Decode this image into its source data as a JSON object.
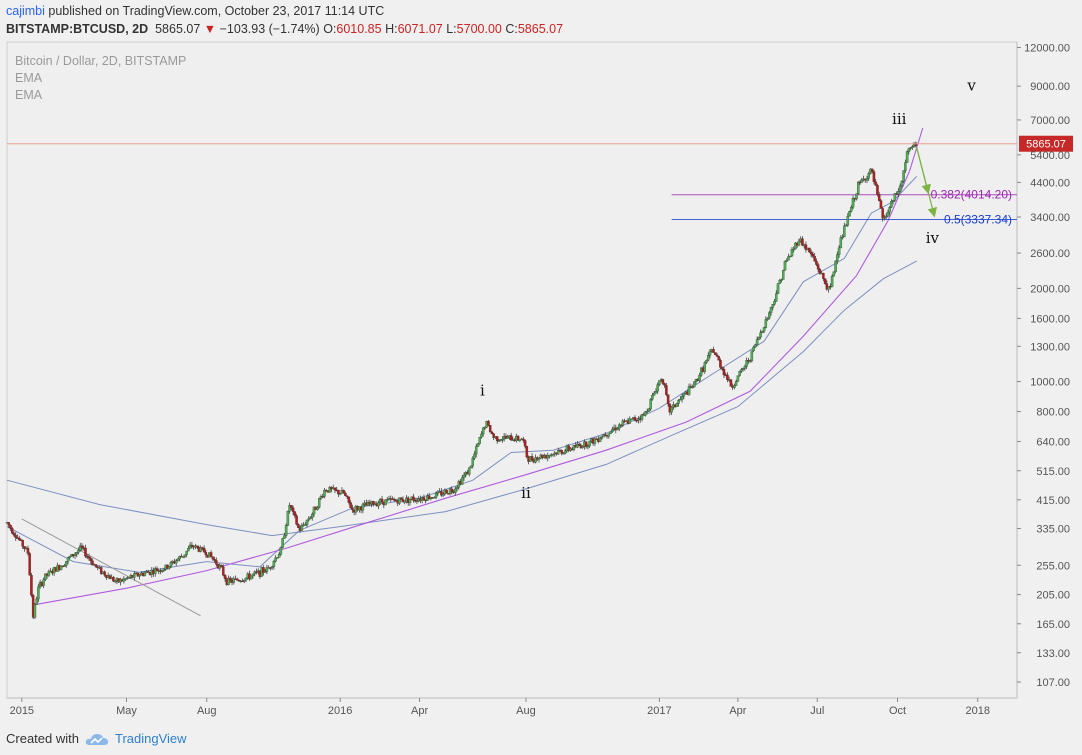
{
  "header": {
    "author": "cajimbi",
    "published_text": " published on TradingView.com, October 23, 2017 11:14 UTC",
    "symbol": "BITSTAMP:BTCUSD, 2D",
    "last": "5865.07",
    "change": "−103.93 (−1.74%)",
    "o_label": "O:",
    "o_value": "6010.85",
    "h_label": "H:",
    "h_value": "6071.07",
    "l_label": "L:",
    "l_value": "5700.00",
    "c_label": "C:",
    "c_value": "5865.07"
  },
  "legend": {
    "title": "Bitcoin / Dollar, 2D, BITSTAMP",
    "ema1": "EMA",
    "ema2": "EMA"
  },
  "footer": {
    "created_with": "Created with",
    "brand": "TradingView"
  },
  "colors": {
    "up": "#4caf50",
    "down": "#b71c1c",
    "price_line": "#e8a090",
    "price_badge": "#c62828",
    "fib382": "#9c27b0",
    "fib5": "#1a3fd0",
    "curve": "#b05ae0",
    "ema_fast": "#6a7fb8",
    "ema_slow": "#6a7fb8",
    "arrow": "#7cb342"
  },
  "chart_data": {
    "type": "candlestick",
    "y_scale": "log",
    "ylim": [
      95,
      12500
    ],
    "xlim": [
      "2014-12-15",
      "2018-02-15"
    ],
    "x_ticks": [
      {
        "label": "2015",
        "date": "2015-01-01"
      },
      {
        "label": "May",
        "date": "2015-05-01"
      },
      {
        "label": "Aug",
        "date": "2015-08-01"
      },
      {
        "label": "2016",
        "date": "2016-01-01"
      },
      {
        "label": "Apr",
        "date": "2016-04-01"
      },
      {
        "label": "Aug",
        "date": "2016-08-01"
      },
      {
        "label": "2017",
        "date": "2017-01-01"
      },
      {
        "label": "Apr",
        "date": "2017-04-01"
      },
      {
        "label": "Jul",
        "date": "2017-07-01"
      },
      {
        "label": "Oct",
        "date": "2017-10-01"
      },
      {
        "label": "2018",
        "date": "2018-01-01"
      }
    ],
    "y_ticks": [
      "107.00",
      "133.00",
      "165.00",
      "205.00",
      "255.00",
      "335.00",
      "415.00",
      "515.00",
      "640.00",
      "800.00",
      "1000.00",
      "1300.00",
      "1600.00",
      "2000.00",
      "2600.00",
      "3400.00",
      "4400.00",
      "5400.00",
      "7000.00",
      "9000.00",
      "12000.00"
    ],
    "last_price": {
      "value": 5865.07,
      "label": "5865.07"
    },
    "close_path": [
      [
        "2014-12-15",
        350
      ],
      [
        "2015-01-08",
        280
      ],
      [
        "2015-01-14",
        175
      ],
      [
        "2015-01-20",
        215
      ],
      [
        "2015-01-28",
        235
      ],
      [
        "2015-02-15",
        255
      ],
      [
        "2015-03-10",
        290
      ],
      [
        "2015-03-28",
        250
      ],
      [
        "2015-04-20",
        225
      ],
      [
        "2015-05-15",
        238
      ],
      [
        "2015-06-15",
        250
      ],
      [
        "2015-07-05",
        275
      ],
      [
        "2015-07-15",
        295
      ],
      [
        "2015-08-01",
        280
      ],
      [
        "2015-08-15",
        255
      ],
      [
        "2015-08-25",
        225
      ],
      [
        "2015-09-15",
        232
      ],
      [
        "2015-10-10",
        248
      ],
      [
        "2015-10-25",
        285
      ],
      [
        "2015-11-04",
        400
      ],
      [
        "2015-11-15",
        330
      ],
      [
        "2015-11-30",
        375
      ],
      [
        "2015-12-15",
        450
      ],
      [
        "2016-01-05",
        435
      ],
      [
        "2016-01-15",
        385
      ],
      [
        "2016-02-15",
        410
      ],
      [
        "2016-03-15",
        415
      ],
      [
        "2016-04-15",
        425
      ],
      [
        "2016-05-10",
        450
      ],
      [
        "2016-05-28",
        520
      ],
      [
        "2016-06-16",
        740
      ],
      [
        "2016-06-25",
        660
      ],
      [
        "2016-07-10",
        655
      ],
      [
        "2016-07-28",
        655
      ],
      [
        "2016-08-03",
        560
      ],
      [
        "2016-08-20",
        575
      ],
      [
        "2016-09-15",
        600
      ],
      [
        "2016-10-15",
        640
      ],
      [
        "2016-11-15",
        720
      ],
      [
        "2016-12-15",
        780
      ],
      [
        "2017-01-04",
        1050
      ],
      [
        "2017-01-12",
        800
      ],
      [
        "2017-02-10",
        980
      ],
      [
        "2017-03-03",
        1270
      ],
      [
        "2017-03-25",
        960
      ],
      [
        "2017-04-15",
        1200
      ],
      [
        "2017-05-10",
        1750
      ],
      [
        "2017-05-25",
        2400
      ],
      [
        "2017-06-10",
        2900
      ],
      [
        "2017-06-25",
        2550
      ],
      [
        "2017-07-15",
        1950
      ],
      [
        "2017-07-25",
        2700
      ],
      [
        "2017-08-17",
        4300
      ],
      [
        "2017-09-01",
        4800
      ],
      [
        "2017-09-15",
        3300
      ],
      [
        "2017-09-25",
        3800
      ],
      [
        "2017-10-05",
        4300
      ],
      [
        "2017-10-12",
        5500
      ],
      [
        "2017-10-23",
        5865.07
      ]
    ],
    "ema_fast": [
      [
        "2014-12-15",
        340
      ],
      [
        "2015-03-01",
        262
      ],
      [
        "2015-05-15",
        242
      ],
      [
        "2015-08-01",
        262
      ],
      [
        "2015-10-01",
        252
      ],
      [
        "2015-11-15",
        330
      ],
      [
        "2016-01-15",
        390
      ],
      [
        "2016-04-01",
        420
      ],
      [
        "2016-06-01",
        480
      ],
      [
        "2016-07-15",
        590
      ],
      [
        "2016-09-01",
        600
      ],
      [
        "2016-11-01",
        680
      ],
      [
        "2017-01-01",
        820
      ],
      [
        "2017-03-01",
        1050
      ],
      [
        "2017-05-01",
        1350
      ],
      [
        "2017-06-15",
        2100
      ],
      [
        "2017-08-01",
        2500
      ],
      [
        "2017-09-01",
        3500
      ],
      [
        "2017-09-25",
        3800
      ],
      [
        "2017-10-23",
        4600
      ]
    ],
    "ema_slow": [
      [
        "2014-12-15",
        480
      ],
      [
        "2015-04-01",
        400
      ],
      [
        "2015-08-01",
        345
      ],
      [
        "2015-10-15",
        318
      ],
      [
        "2016-01-01",
        340
      ],
      [
        "2016-05-01",
        380
      ],
      [
        "2016-08-01",
        450
      ],
      [
        "2016-11-01",
        540
      ],
      [
        "2017-01-15",
        670
      ],
      [
        "2017-04-01",
        830
      ],
      [
        "2017-06-15",
        1250
      ],
      [
        "2017-08-01",
        1700
      ],
      [
        "2017-09-15",
        2150
      ],
      [
        "2017-10-23",
        2450
      ]
    ],
    "trend_curve": [
      [
        "2015-01-15",
        190
      ],
      [
        "2015-05-01",
        215
      ],
      [
        "2015-08-01",
        245
      ],
      [
        "2015-11-01",
        290
      ],
      [
        "2016-02-01",
        350
      ],
      [
        "2016-05-01",
        420
      ],
      [
        "2016-08-01",
        500
      ],
      [
        "2016-11-01",
        600
      ],
      [
        "2017-02-01",
        740
      ],
      [
        "2017-04-15",
        930
      ],
      [
        "2017-06-15",
        1400
      ],
      [
        "2017-08-15",
        2200
      ],
      [
        "2017-09-20",
        3300
      ],
      [
        "2017-10-15",
        4800
      ],
      [
        "2017-10-30",
        6600
      ]
    ],
    "downtrend_line": [
      [
        "2015-01-01",
        360
      ],
      [
        "2015-07-25",
        175
      ]
    ],
    "fib_levels": [
      {
        "label": "0.382(4014.20)",
        "value": 4014.2,
        "from": "2017-01-15",
        "color": "#9c27b0"
      },
      {
        "label": "0.5(3337.34)",
        "value": 3337.34,
        "from": "2017-01-15",
        "color": "#1a3fd0"
      }
    ],
    "wave_labels": [
      {
        "label": "i",
        "date": "2016-06-12",
        "value": 900
      },
      {
        "label": "ii",
        "date": "2016-08-01",
        "value": 420
      },
      {
        "label": "iii",
        "date": "2017-10-03",
        "value": 6800
      },
      {
        "label": "iv",
        "date": "2017-11-10",
        "value": 2800
      },
      {
        "label": "v",
        "date": "2017-12-25",
        "value": 8700
      }
    ],
    "projection_arrows": [
      [
        [
          "2017-10-23",
          5700
        ],
        [
          "2017-11-05",
          4100
        ]
      ],
      [
        [
          "2017-10-23",
          5700
        ],
        [
          "2017-11-12",
          3450
        ]
      ]
    ]
  }
}
